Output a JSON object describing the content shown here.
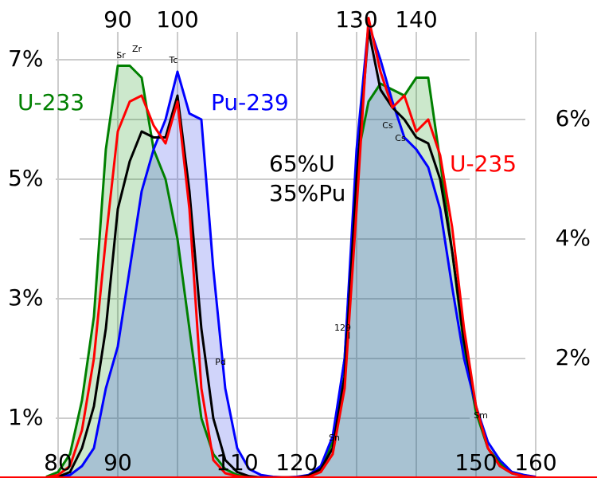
{
  "chart_data": {
    "type": "line",
    "x": [
      78,
      80,
      82,
      84,
      86,
      88,
      90,
      92,
      94,
      96,
      98,
      100,
      102,
      104,
      106,
      108,
      110,
      112,
      114,
      116,
      118,
      120,
      122,
      124,
      126,
      128,
      130,
      132,
      134,
      136,
      138,
      140,
      142,
      144,
      146,
      148,
      150,
      152,
      154,
      156,
      158,
      160
    ],
    "series": [
      {
        "name": "U-233",
        "color": "#008000",
        "fill": "rgba(0,140,0,0.2)",
        "values": [
          0.02,
          0.1,
          0.4,
          1.3,
          2.7,
          5.5,
          6.9,
          6.9,
          6.7,
          5.5,
          5.0,
          4.0,
          2.5,
          1.0,
          0.4,
          0.15,
          0.05,
          0.02,
          0.01,
          0.01,
          0.01,
          0.01,
          0.05,
          0.2,
          0.6,
          2.0,
          5.3,
          6.3,
          6.6,
          6.5,
          6.4,
          6.7,
          6.7,
          5.3,
          3.8,
          2.2,
          1.1,
          0.5,
          0.25,
          0.1,
          0.05,
          0.01
        ]
      },
      {
        "name": "Pu-239",
        "color": "#0000ff",
        "fill": "rgba(40,60,230,0.22)",
        "values": [
          0.01,
          0.02,
          0.05,
          0.2,
          0.5,
          1.5,
          2.2,
          3.5,
          4.8,
          5.5,
          6.0,
          6.8,
          6.1,
          6.0,
          3.5,
          1.5,
          0.5,
          0.15,
          0.05,
          0.02,
          0.01,
          0.02,
          0.05,
          0.2,
          0.7,
          2.0,
          5.5,
          7.6,
          7.0,
          6.3,
          5.7,
          5.5,
          5.2,
          4.5,
          3.2,
          2.0,
          1.2,
          0.6,
          0.3,
          0.1,
          0.05,
          0.02
        ]
      },
      {
        "name_lines": [
          "65%U",
          "35%Pu"
        ],
        "color": "#000000",
        "values": [
          0.01,
          0.02,
          0.1,
          0.5,
          1.2,
          2.5,
          4.5,
          5.3,
          5.8,
          5.7,
          5.7,
          6.4,
          4.8,
          2.5,
          1.0,
          0.3,
          0.1,
          0.03,
          0.01,
          0.01,
          0.01,
          0.01,
          0.04,
          0.15,
          0.5,
          1.7,
          5.0,
          7.5,
          6.5,
          6.2,
          6.0,
          5.7,
          5.6,
          5.0,
          3.8,
          2.3,
          1.2,
          0.5,
          0.2,
          0.08,
          0.03,
          0.01
        ]
      },
      {
        "name": "U-235",
        "color": "#ff0000",
        "values": [
          0.01,
          0.05,
          0.2,
          0.8,
          2.0,
          4.0,
          5.8,
          6.3,
          6.4,
          5.9,
          5.6,
          6.3,
          4.5,
          1.5,
          0.3,
          0.08,
          0.03,
          0.01,
          0.01,
          0.01,
          0.01,
          0.01,
          0.02,
          0.1,
          0.4,
          1.5,
          4.5,
          7.7,
          6.8,
          6.2,
          6.4,
          5.8,
          6.0,
          5.4,
          4.2,
          2.5,
          1.2,
          0.5,
          0.2,
          0.08,
          0.03,
          0.01
        ]
      }
    ],
    "xlim": [
      70.27,
      170.27
    ],
    "ylim": [
      0,
      8
    ],
    "xticks": [
      80,
      90,
      110,
      120,
      150,
      160
    ],
    "xticks_top": [
      90,
      100,
      130,
      140
    ],
    "yticks": [
      {
        "value": 1,
        "label": "1%"
      },
      {
        "value": 3,
        "label": "3%"
      },
      {
        "value": 5,
        "label": "5%"
      },
      {
        "value": 7,
        "label": "7%"
      }
    ],
    "y2lim": [
      0,
      8
    ],
    "y2ticks": [
      {
        "value": 2,
        "label": "2%"
      },
      {
        "value": 4,
        "label": "4%"
      },
      {
        "value": 6,
        "label": "6%"
      }
    ],
    "grid": true,
    "annotations": [
      "Sr",
      "Zr",
      "Tc",
      "Cs",
      "Cs",
      "Pd",
      "Sn",
      "Sm"
    ],
    "iodine": {
      "mass": "129",
      "symbol": "I"
    }
  }
}
